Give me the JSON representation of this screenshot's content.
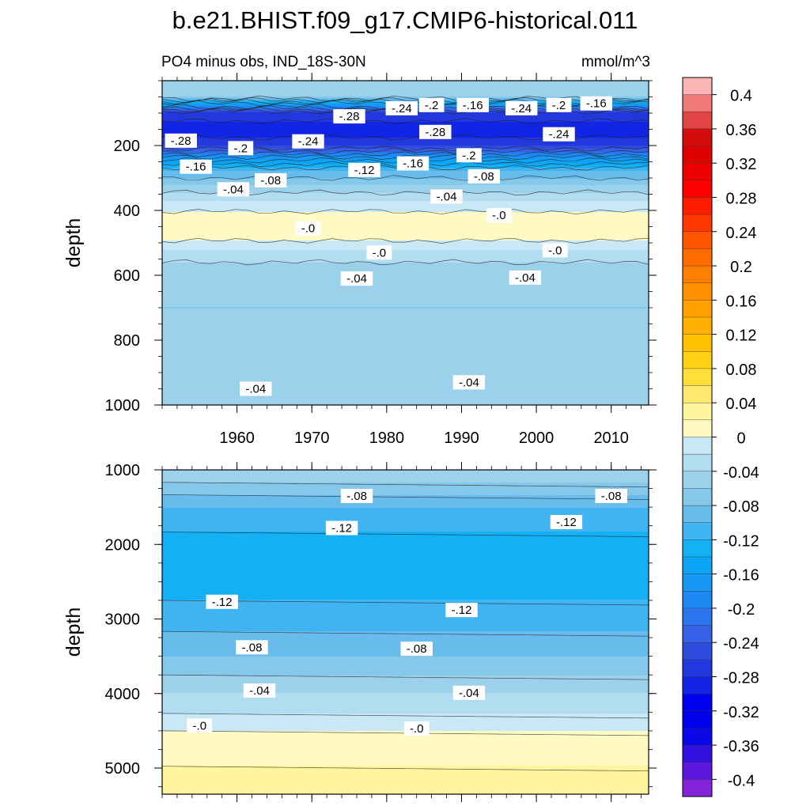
{
  "title": "b.e21.BHIST.f09_g17.CMIP6-historical.011",
  "subtitle_left": "PO4 minus obs, IND_18S-30N",
  "subtitle_right": "mmol/m^3",
  "chart_data": [
    {
      "type": "contour",
      "panel": "upper",
      "ylabel": "depth",
      "xlim": [
        1950,
        2015
      ],
      "ylim": [
        1000,
        0
      ],
      "xticks": [
        1960,
        1970,
        1980,
        1990,
        2000,
        2010
      ],
      "xtick_labels": [
        "1960",
        "1970",
        "1980",
        "1990",
        "2000",
        "2010"
      ],
      "yticks": [
        200,
        400,
        600,
        800,
        1000
      ],
      "ytick_labels": [
        "200",
        "400",
        "600",
        "800",
        "1000"
      ],
      "depth_profile": [
        {
          "depth": 0,
          "value": -0.04
        },
        {
          "depth": 50,
          "value": -0.06
        },
        {
          "depth": 75,
          "value": -0.16
        },
        {
          "depth": 100,
          "value": -0.26
        },
        {
          "depth": 150,
          "value": -0.3
        },
        {
          "depth": 200,
          "value": -0.26
        },
        {
          "depth": 240,
          "value": -0.17
        },
        {
          "depth": 280,
          "value": -0.1
        },
        {
          "depth": 320,
          "value": -0.06
        },
        {
          "depth": 370,
          "value": -0.02
        },
        {
          "depth": 420,
          "value": 0.01
        },
        {
          "depth": 480,
          "value": 0.01
        },
        {
          "depth": 520,
          "value": -0.02
        },
        {
          "depth": 580,
          "value": -0.05
        },
        {
          "depth": 700,
          "value": -0.06
        },
        {
          "depth": 850,
          "value": -0.05
        },
        {
          "depth": 1000,
          "value": -0.04
        }
      ],
      "contour_labels": [
        {
          "text": "-.28",
          "year": 1952.5,
          "depth": 185
        },
        {
          "text": "-.16",
          "year": 1954.5,
          "depth": 265
        },
        {
          "text": "-.2",
          "year": 1960.5,
          "depth": 208
        },
        {
          "text": "-.04",
          "year": 1959.5,
          "depth": 335
        },
        {
          "text": "-.08",
          "year": 1964.5,
          "depth": 307
        },
        {
          "text": "-.24",
          "year": 1969.5,
          "depth": 187
        },
        {
          "text": "-.0",
          "year": 1969.5,
          "depth": 455
        },
        {
          "text": "-.28",
          "year": 1975,
          "depth": 110
        },
        {
          "text": "-.12",
          "year": 1977,
          "depth": 275
        },
        {
          "text": "-.0",
          "year": 1979,
          "depth": 530
        },
        {
          "text": "-.04",
          "year": 1976,
          "depth": 610
        },
        {
          "text": "-.24",
          "year": 1982,
          "depth": 85
        },
        {
          "text": "-.16",
          "year": 1983.5,
          "depth": 255
        },
        {
          "text": "-.2",
          "year": 1986,
          "depth": 75
        },
        {
          "text": "-.28",
          "year": 1986.5,
          "depth": 158
        },
        {
          "text": "-.04",
          "year": 1988,
          "depth": 357
        },
        {
          "text": "-.16",
          "year": 1991.5,
          "depth": 75
        },
        {
          "text": "-.2",
          "year": 1991,
          "depth": 230
        },
        {
          "text": "-.08",
          "year": 1993,
          "depth": 295
        },
        {
          "text": "-.0",
          "year": 1995,
          "depth": 415
        },
        {
          "text": "-.24",
          "year": 1998,
          "depth": 85
        },
        {
          "text": "-.04",
          "year": 1998.5,
          "depth": 607
        },
        {
          "text": "-.2",
          "year": 2003,
          "depth": 75
        },
        {
          "text": "-.24",
          "year": 2003,
          "depth": 165
        },
        {
          "text": "-.0",
          "year": 2002.5,
          "depth": 523
        },
        {
          "text": "-.16",
          "year": 2008,
          "depth": 70
        },
        {
          "text": "-.04",
          "year": 1962.5,
          "depth": 950
        },
        {
          "text": "-.04",
          "year": 1991,
          "depth": 930
        }
      ]
    },
    {
      "type": "contour",
      "panel": "lower",
      "ylabel": "depth",
      "xlim": [
        1950,
        2015
      ],
      "ylim": [
        5350,
        1000
      ],
      "xticks": [
        1960,
        1970,
        1980,
        1990,
        2000,
        2010
      ],
      "yticks": [
        1000,
        2000,
        3000,
        4000,
        5000
      ],
      "ytick_labels": [
        "1000",
        "2000",
        "3000",
        "4000",
        "5000"
      ],
      "depth_profile": [
        {
          "depth": 1000,
          "value": -0.04
        },
        {
          "depth": 1500,
          "value": -0.1
        },
        {
          "depth": 2000,
          "value": -0.13
        },
        {
          "depth": 2500,
          "value": -0.13
        },
        {
          "depth": 3000,
          "value": -0.11
        },
        {
          "depth": 3500,
          "value": -0.08
        },
        {
          "depth": 4000,
          "value": -0.04
        },
        {
          "depth": 4400,
          "value": -0.01
        },
        {
          "depth": 4600,
          "value": 0.01
        },
        {
          "depth": 5350,
          "value": 0.03
        }
      ],
      "contour_labels": [
        {
          "text": "-.08",
          "year": 1976,
          "depth": 1350
        },
        {
          "text": "-.08",
          "year": 2010,
          "depth": 1350
        },
        {
          "text": "-.12",
          "year": 1974,
          "depth": 1780
        },
        {
          "text": "-.12",
          "year": 2004,
          "depth": 1700
        },
        {
          "text": "-.12",
          "year": 1958,
          "depth": 2770
        },
        {
          "text": "-.12",
          "year": 1990,
          "depth": 2880
        },
        {
          "text": "-.08",
          "year": 1962,
          "depth": 3380
        },
        {
          "text": "-.08",
          "year": 1984,
          "depth": 3400
        },
        {
          "text": "-.04",
          "year": 1963,
          "depth": 3960
        },
        {
          "text": "-.04",
          "year": 1991,
          "depth": 3990
        },
        {
          "text": "-.0",
          "year": 1955,
          "depth": 4430
        },
        {
          "text": "-.0",
          "year": 1984,
          "depth": 4470
        }
      ]
    }
  ],
  "colorbar": {
    "tick_labels": [
      "0.4",
      "0.36",
      "0.32",
      "0.28",
      "0.24",
      "0.2",
      "0.16",
      "0.12",
      "0.08",
      "0.04",
      "0",
      "-0.04",
      "-0.08",
      "-0.12",
      "-0.16",
      "-0.2",
      "-0.24",
      "-0.28",
      "-0.32",
      "-0.36",
      "-0.4"
    ],
    "levels_top_to_bottom": [
      0.42,
      0.4,
      0.38,
      0.36,
      0.34,
      0.32,
      0.3,
      0.28,
      0.26,
      0.24,
      0.22,
      0.2,
      0.18,
      0.16,
      0.14,
      0.12,
      0.1,
      0.08,
      0.06,
      0.04,
      0.02,
      0,
      -0.02,
      -0.04,
      -0.06,
      -0.08,
      -0.1,
      -0.12,
      -0.14,
      -0.16,
      -0.18,
      -0.2,
      -0.22,
      -0.24,
      -0.26,
      -0.28,
      -0.3,
      -0.32,
      -0.34,
      -0.36,
      -0.38,
      -0.4,
      -0.42
    ],
    "colors": [
      "#fbb5b5",
      "#f07878",
      "#e04444",
      "#d40c0c",
      "#df0000",
      "#ec0000",
      "#fa0000",
      "#ff1c00",
      "#ff3800",
      "#ff5400",
      "#ff6c00",
      "#ff8000",
      "#ff9000",
      "#ffa000",
      "#ffb000",
      "#ffc000",
      "#ffd014",
      "#ffde3c",
      "#ffe870",
      "#fff4a0",
      "#fffac4",
      "#c9e8f6",
      "#b2dcf0",
      "#9cd1ec",
      "#86c8ea",
      "#68bcec",
      "#40b4f0",
      "#14b0f4",
      "#0ca4f4",
      "#1698f4",
      "#1e88f2",
      "#2a74ee",
      "#3660e6",
      "#304cde",
      "#2238dc",
      "#1224e4",
      "#0000f0",
      "#0000ea",
      "#0a08e6",
      "#3410e0",
      "#5c18dc",
      "#8624dc"
    ]
  }
}
